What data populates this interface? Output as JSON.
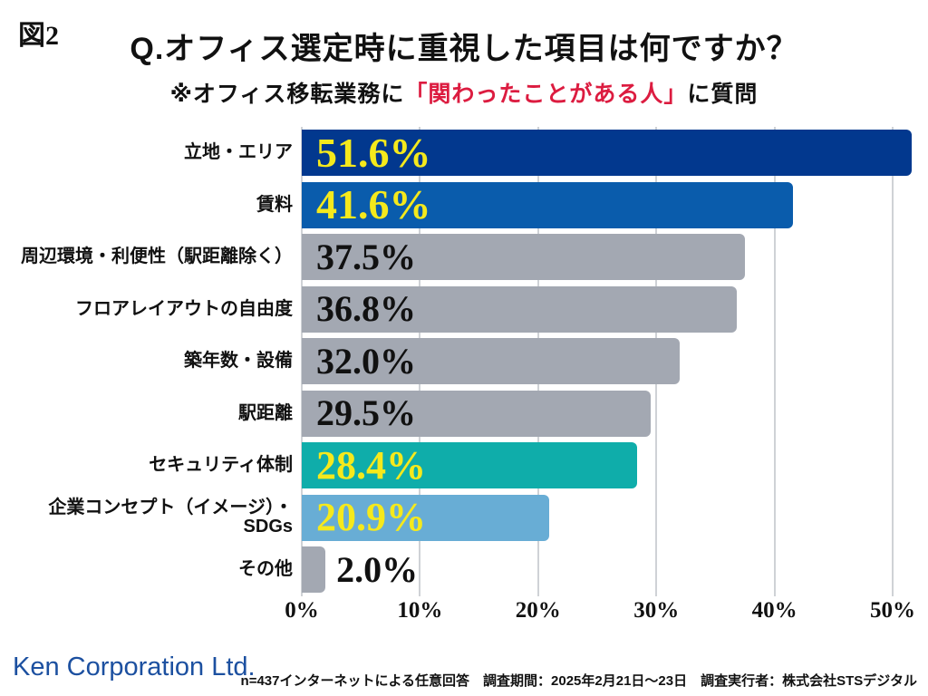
{
  "figure_label": "図2",
  "title": "Q.オフィス選定時に重視した項目は何ですか？",
  "subtitle": {
    "prefix": "※オフィス移転業務に",
    "highlight": "「関わったことがある人」",
    "suffix": "に質問",
    "highlight_color": "#dc1c40"
  },
  "chart_data": {
    "type": "bar",
    "orientation": "horizontal",
    "categories": [
      "立地・エリア",
      "賃料",
      "周辺環境・利便性（駅距離除く）",
      "フロアレイアウトの自由度",
      "築年数・設備",
      "駅距離",
      "セキュリティ体制",
      "企業コンセプト（イメージ）・SDGs",
      "その他"
    ],
    "values": [
      51.6,
      41.6,
      37.5,
      36.8,
      32.0,
      29.5,
      28.4,
      20.9,
      2.0
    ],
    "value_labels": [
      "51.6%",
      "41.6%",
      "37.5%",
      "36.8%",
      "32.0%",
      "29.5%",
      "28.4%",
      "20.9%",
      "2.0%"
    ],
    "bar_colors": [
      "#02388e",
      "#0a5cac",
      "#a3a8b2",
      "#a3a8b2",
      "#a3a8b2",
      "#a3a8b2",
      "#0fadaa",
      "#68add5",
      "#a3a8b2"
    ],
    "value_label_colors": [
      "#f5e91c",
      "#f5e91c",
      "#111111",
      "#111111",
      "#111111",
      "#111111",
      "#f5e91c",
      "#f5e91c",
      "#111111"
    ],
    "value_font_px": [
      46,
      46,
      40,
      40,
      40,
      40,
      44,
      44,
      40
    ],
    "xticks": [
      "0%",
      "10%",
      "20%",
      "30%",
      "40%",
      "50%"
    ],
    "xlim": [
      0,
      53
    ],
    "grid": true,
    "legend": null
  },
  "footer": {
    "logo_text": "Ken Corporation Ltd.",
    "logo_color": "#1c50a0",
    "note": "n=437インターネットによる任意回答　調査期間：2025年2月21日～23日　調査実行者：株式会社STSデジタル"
  }
}
